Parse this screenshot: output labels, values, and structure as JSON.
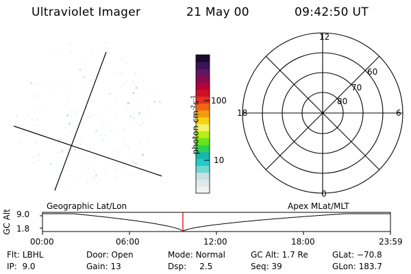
{
  "header": {
    "instrument": "Ultraviolet Imager",
    "date": "21 May 00",
    "time": "09:42:50 UT"
  },
  "colorbar": {
    "unit_main": "photon cm",
    "unit_exp1": "-2",
    "unit_s": "s",
    "unit_exp2": "-1",
    "ticks": [
      "100",
      "10"
    ],
    "colors": [
      "#f2f2f2",
      "#dfe9ea",
      "#c4e2e5",
      "#70d8cf",
      "#26c9cc",
      "#18b7a8",
      "#2dd34c",
      "#6ae41c",
      "#b8ee16",
      "#f2f26a",
      "#f5d215",
      "#f59b12",
      "#ef6715",
      "#e43020",
      "#cf0f26",
      "#b00538",
      "#850c4c",
      "#5f1562",
      "#3a1454",
      "#1a0c2f"
    ]
  },
  "polar": {
    "mlt_labels": {
      "top": "12",
      "left": "18",
      "right": "6",
      "bottom": "0"
    },
    "lat_labels": [
      "60",
      "70",
      "80"
    ]
  },
  "strip": {
    "y_label": "GC Alt",
    "y_ticks": [
      "9.0",
      "1.8"
    ],
    "left_title": "Geographic Lat/Lon",
    "right_title": "Apex MLat/MLT",
    "x_ticks": [
      "00:00",
      "06:00",
      "12:00",
      "18:00",
      "23:59"
    ],
    "marker_color": "#e00000"
  },
  "footer": {
    "row1": [
      {
        "key": "Flt:",
        "value": "LBHL"
      },
      {
        "key": "Door:",
        "value": "Open"
      },
      {
        "key": "Mode:",
        "value": "Normal"
      },
      {
        "key": "GC Alt:",
        "value": "1.7 Re"
      },
      {
        "key": "GLat:",
        "value": "−70.8"
      }
    ],
    "row2": [
      {
        "key": "IP:",
        "value": "9.0"
      },
      {
        "key": "Gain:",
        "value": "13"
      },
      {
        "key": "Dsp:",
        "value": "2.5"
      },
      {
        "key": "Seq:",
        "value": "39"
      },
      {
        "key": "GLon:",
        "value": "183.7"
      }
    ]
  }
}
